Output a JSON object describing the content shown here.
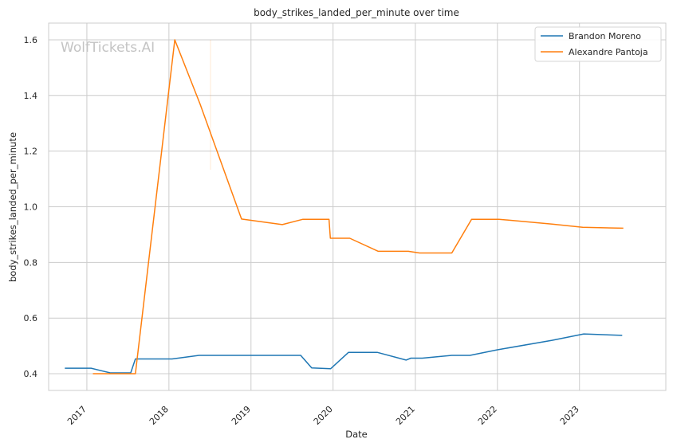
{
  "chart_data": {
    "type": "line",
    "title": "body_strikes_landed_per_minute over time",
    "xlabel": "Date",
    "ylabel": "body_strikes_landed_per_minute",
    "watermark": "WolfTickets.AI",
    "x_ticks": [
      "2017",
      "2018",
      "2019",
      "2020",
      "2021",
      "2022",
      "2023"
    ],
    "y_ticks": [
      "0.4",
      "0.6",
      "0.8",
      "1.0",
      "1.2",
      "1.4",
      "1.6"
    ],
    "xlim": [
      "2016-07-15",
      "2024-01-20"
    ],
    "ylim": [
      0.34,
      1.66
    ],
    "grid": true,
    "legend_position": "top-right",
    "series": [
      {
        "name": "Brandon Moreno",
        "color": "#1f77b4",
        "points": [
          [
            "2016-09-25",
            0.42
          ],
          [
            "2017-01-20",
            0.42
          ],
          [
            "2017-04-15",
            0.403
          ],
          [
            "2017-07-15",
            0.403
          ],
          [
            "2017-08-05",
            0.453
          ],
          [
            "2018-01-15",
            0.453
          ],
          [
            "2018-05-15",
            0.466
          ],
          [
            "2019-08-10",
            0.466
          ],
          [
            "2019-09-28",
            0.421
          ],
          [
            "2019-12-21",
            0.418
          ],
          [
            "2020-03-10",
            0.477
          ],
          [
            "2020-07-15",
            0.477
          ],
          [
            "2020-11-21",
            0.449
          ],
          [
            "2020-12-12",
            0.456
          ],
          [
            "2021-02-01",
            0.456
          ],
          [
            "2021-06-12",
            0.466
          ],
          [
            "2021-09-01",
            0.466
          ],
          [
            "2022-01-01",
            0.486
          ],
          [
            "2022-09-01",
            0.52
          ],
          [
            "2023-01-20",
            0.543
          ],
          [
            "2023-07-10",
            0.538
          ]
        ]
      },
      {
        "name": "Alexandre Pantoja",
        "color": "#ff7f0e",
        "points": [
          [
            "2017-01-28",
            0.4
          ],
          [
            "2017-08-05",
            0.4
          ],
          [
            "2018-01-27",
            1.6
          ],
          [
            "2018-05-19",
            1.37
          ],
          [
            "2018-11-20",
            0.956
          ],
          [
            "2019-05-20",
            0.936
          ],
          [
            "2019-08-20",
            0.955
          ],
          [
            "2019-12-14",
            0.955
          ],
          [
            "2019-12-20",
            0.887
          ],
          [
            "2020-03-15",
            0.887
          ],
          [
            "2020-07-20",
            0.84
          ],
          [
            "2020-12-01",
            0.84
          ],
          [
            "2021-01-20",
            0.834
          ],
          [
            "2021-06-12",
            0.834
          ],
          [
            "2021-09-08",
            0.955
          ],
          [
            "2022-01-08",
            0.955
          ],
          [
            "2022-09-01",
            0.938
          ],
          [
            "2023-01-15",
            0.926
          ],
          [
            "2023-07-15",
            0.923
          ]
        ]
      }
    ]
  }
}
